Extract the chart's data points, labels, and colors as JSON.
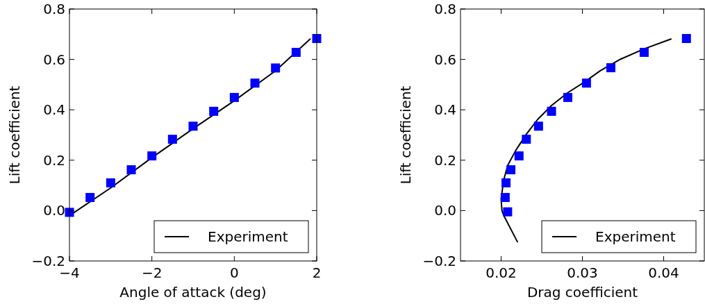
{
  "chart_data": [
    {
      "type": "line",
      "xlabel": "Angle of attack (deg)",
      "ylabel": "Lift coefficient",
      "xlim": [
        -4,
        2
      ],
      "ylim": [
        -0.2,
        0.8
      ],
      "xticks": [
        {
          "value": -4,
          "label": "−4"
        },
        {
          "value": -2,
          "label": "−2"
        },
        {
          "value": 0,
          "label": "0"
        },
        {
          "value": 2,
          "label": "2"
        }
      ],
      "yticks": [
        {
          "value": -0.2,
          "label": "−0.2"
        },
        {
          "value": 0,
          "label": "0.0"
        },
        {
          "value": 0.2,
          "label": "0.2"
        },
        {
          "value": 0.4,
          "label": "0.4"
        },
        {
          "value": 0.6,
          "label": "0.6"
        },
        {
          "value": 0.8,
          "label": "0.8"
        }
      ],
      "legend": "bottom right",
      "grid": false,
      "series": [
        {
          "name": "Experiment",
          "color": "#000000",
          "line_style": "solid",
          "x": [
            -4,
            -3,
            -2,
            -1,
            0,
            1,
            1.84
          ],
          "values": [
            -0.02,
            0.09,
            0.21,
            0.325,
            0.436,
            0.555,
            0.681
          ]
        },
        {
          "type": "scatter",
          "color": "#0000ff",
          "marker": "square",
          "x": [
            -4,
            -3.5,
            -3,
            -2.5,
            -2,
            -1.5,
            -1,
            -0.5,
            0,
            0.5,
            1,
            1.5,
            2
          ],
          "values": [
            -0.007,
            0.052,
            0.11,
            0.162,
            0.217,
            0.283,
            0.335,
            0.394,
            0.449,
            0.506,
            0.566,
            0.628,
            0.683
          ]
        }
      ]
    },
    {
      "type": "line",
      "xlabel": "Drag coefficient",
      "ylabel": "Lift coefficient",
      "xlim": [
        0.015,
        0.045
      ],
      "ylim": [
        -0.2,
        0.8
      ],
      "xticks": [
        {
          "value": 0.02,
          "label": "0.02"
        },
        {
          "value": 0.03,
          "label": "0.03"
        },
        {
          "value": 0.04,
          "label": "0.04"
        }
      ],
      "yticks": [
        {
          "value": -0.2,
          "label": "−0.2"
        },
        {
          "value": 0,
          "label": "0.0"
        },
        {
          "value": 0.2,
          "label": "0.2"
        },
        {
          "value": 0.4,
          "label": "0.4"
        },
        {
          "value": 0.6,
          "label": "0.6"
        },
        {
          "value": 0.8,
          "label": "0.8"
        }
      ],
      "legend": "bottom right",
      "grid": false,
      "series": [
        {
          "name": "Experiment",
          "color": "#000000",
          "line_style": "solid",
          "x": [
            0.022,
            0.0203,
            0.0201,
            0.02,
            0.0203,
            0.0208,
            0.0218,
            0.0231,
            0.0245,
            0.0262,
            0.0282,
            0.0302,
            0.0322,
            0.0347,
            0.0376,
            0.0409
          ],
          "values": [
            -0.124,
            -0.018,
            0.0,
            0.046,
            0.119,
            0.179,
            0.239,
            0.303,
            0.362,
            0.417,
            0.468,
            0.509,
            0.555,
            0.601,
            0.642,
            0.681
          ]
        },
        {
          "type": "scatter",
          "color": "#0000ff",
          "marker": "square",
          "x": [
            0.0208,
            0.0205,
            0.0206,
            0.0212,
            0.0222,
            0.0231,
            0.0246,
            0.0262,
            0.0282,
            0.0305,
            0.0335,
            0.0376,
            0.0428
          ],
          "values": [
            -0.005,
            0.052,
            0.11,
            0.162,
            0.217,
            0.283,
            0.335,
            0.394,
            0.449,
            0.506,
            0.567,
            0.628,
            0.683
          ]
        }
      ]
    }
  ]
}
